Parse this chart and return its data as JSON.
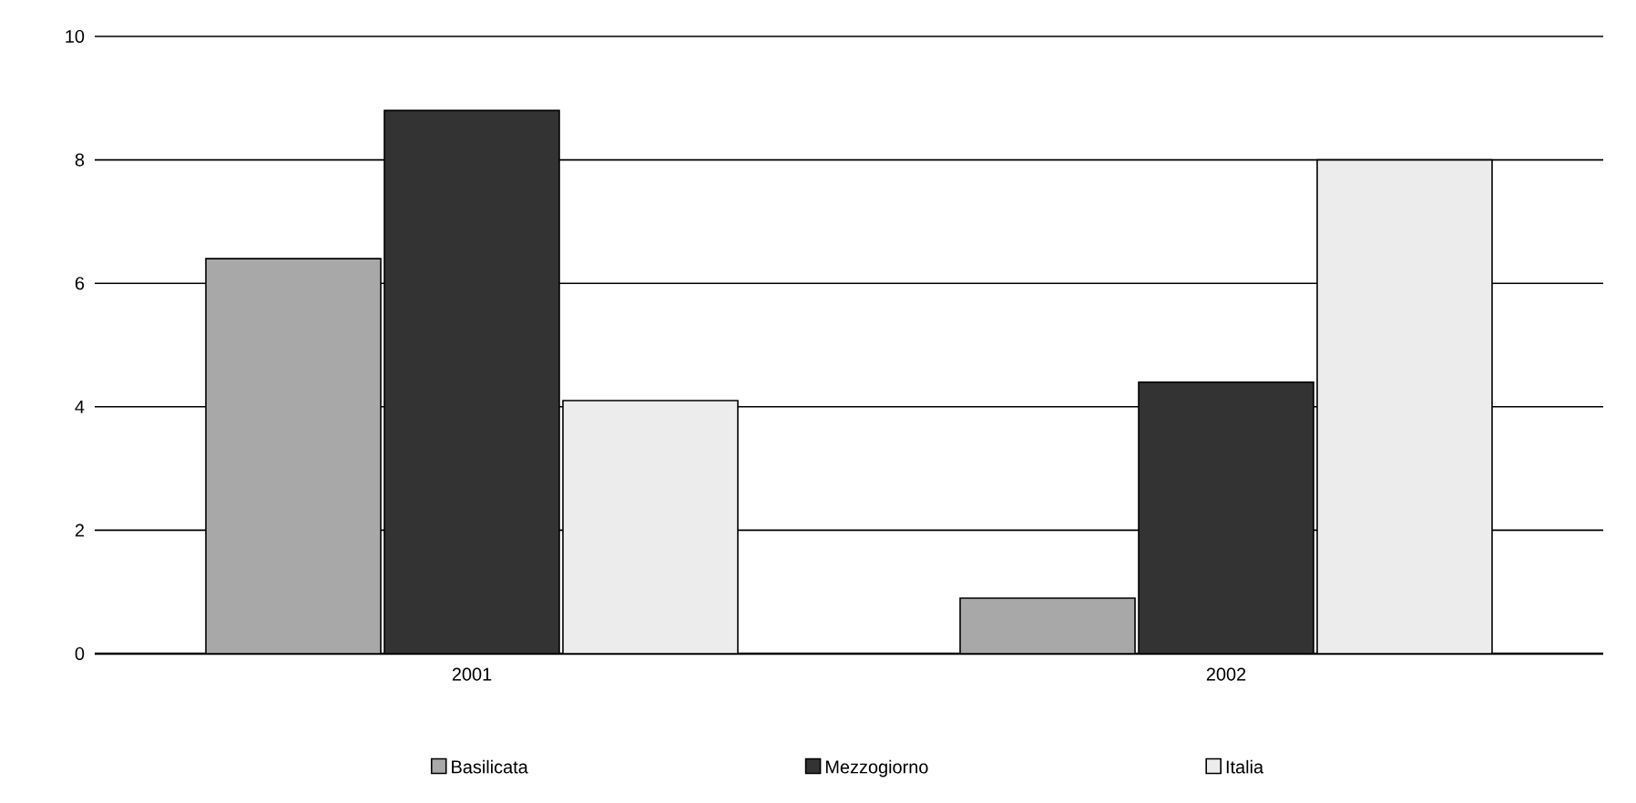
{
  "chart_data": {
    "type": "bar",
    "categories": [
      "2001",
      "2002"
    ],
    "series": [
      {
        "name": "Basilicata",
        "color": "#a8a8a8",
        "values": [
          6.4,
          0.9
        ]
      },
      {
        "name": "Mezzogiorno",
        "color": "#333333",
        "values": [
          8.8,
          4.4
        ]
      },
      {
        "name": "Italia",
        "color": "#ececec",
        "values": [
          4.1,
          8.0
        ]
      }
    ],
    "ylim": [
      0,
      10
    ],
    "yticks": [
      0,
      2,
      4,
      6,
      8,
      10
    ],
    "grid": "y",
    "legend": "bottom"
  }
}
